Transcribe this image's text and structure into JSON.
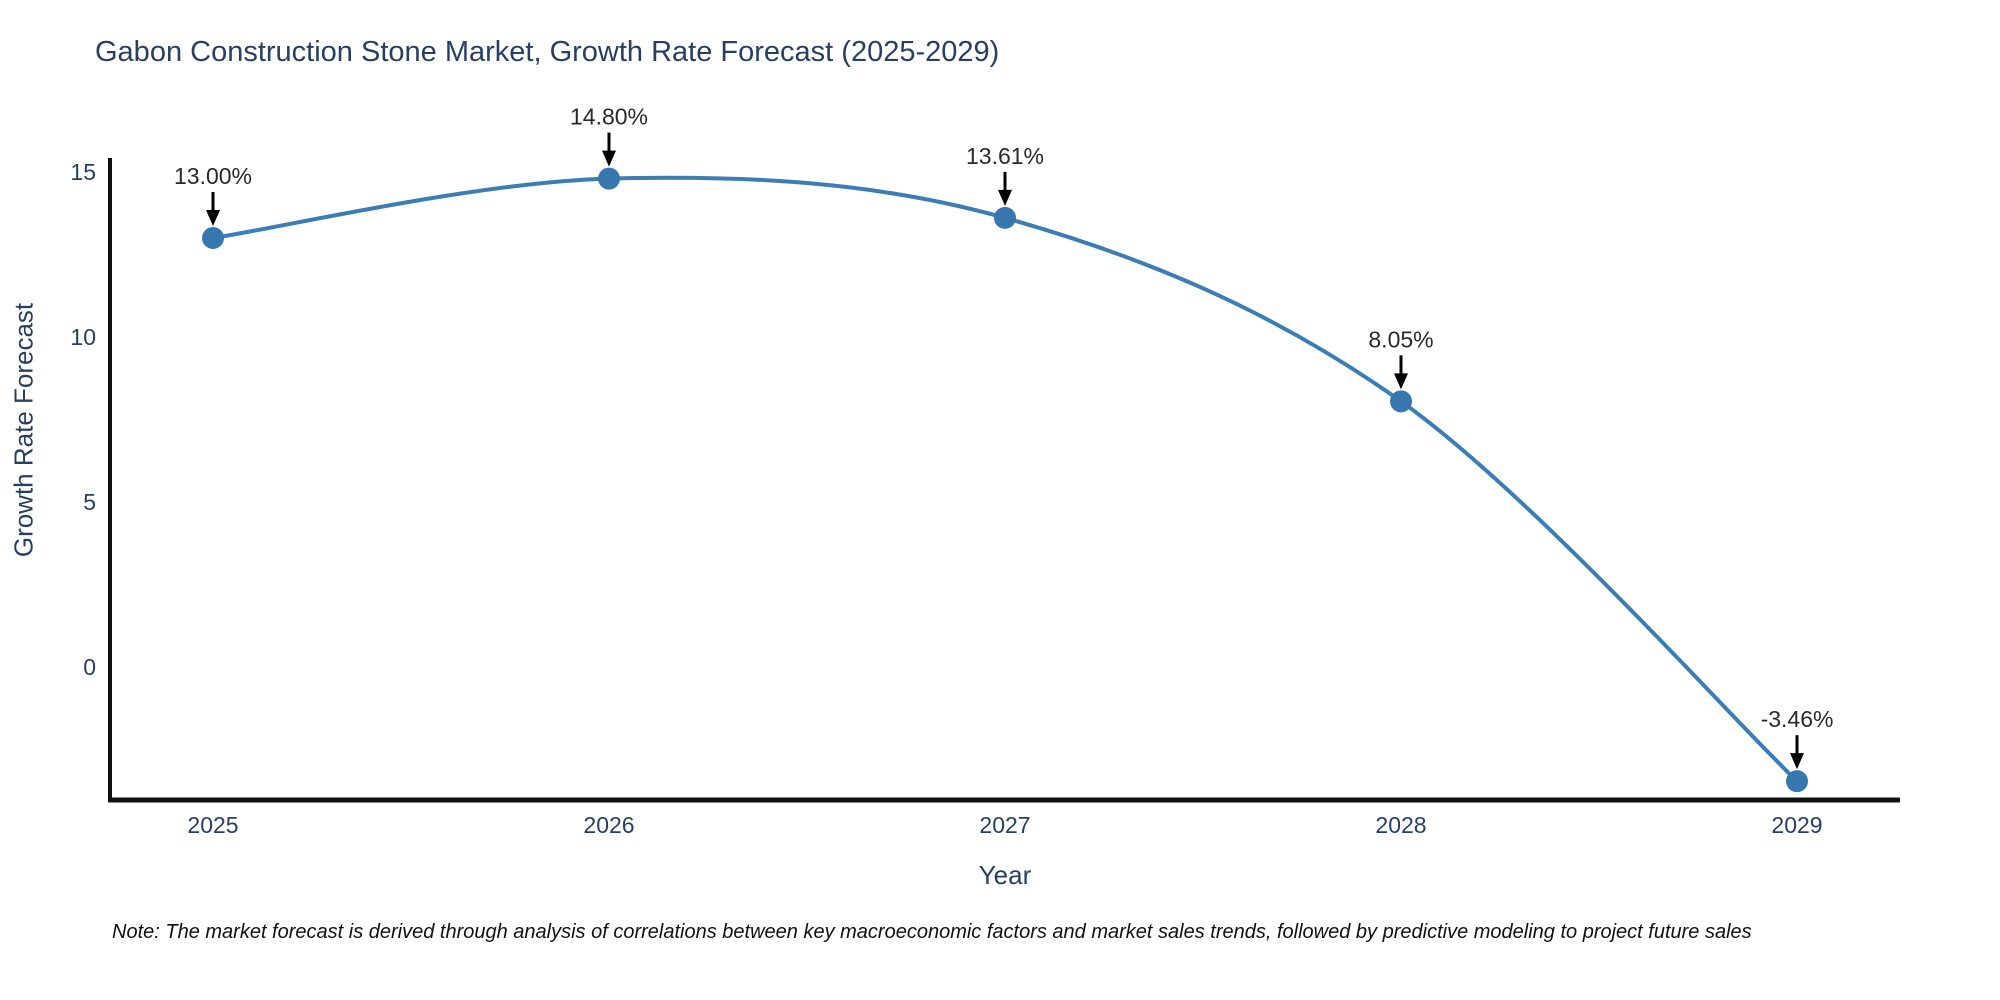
{
  "title": "Gabon Construction Stone Market, Growth Rate Forecast (2025-2029)",
  "note": "Note: The market forecast is derived through analysis of correlations between key macroeconomic factors and market sales trends, followed by predictive modeling to project future sales",
  "chart_data": {
    "type": "line",
    "title": "Gabon Construction Stone Market, Growth Rate Forecast (2025-2029)",
    "x": [
      "2025",
      "2026",
      "2027",
      "2028",
      "2029"
    ],
    "values": [
      13.0,
      14.8,
      13.61,
      8.05,
      -3.46
    ],
    "point_labels": [
      "13.00%",
      "14.80%",
      "13.61%",
      "8.05%",
      "-3.46%"
    ],
    "xlabel": "Year",
    "ylabel": "Growth Rate Forecast",
    "yticks": [
      0,
      5,
      10,
      15
    ],
    "ylim": [
      -4.0,
      15.4
    ],
    "grid": false,
    "legend_position": "none",
    "line_shape": "spline",
    "colors": {
      "line": "#3c7db3",
      "marker": "#3777ae",
      "axis": "#111111",
      "axis_text": "#2a3f5f",
      "annotation_text": "#2a2a2a",
      "annotation_arrow": "#000000",
      "title_text": "#2a3f5f"
    }
  }
}
